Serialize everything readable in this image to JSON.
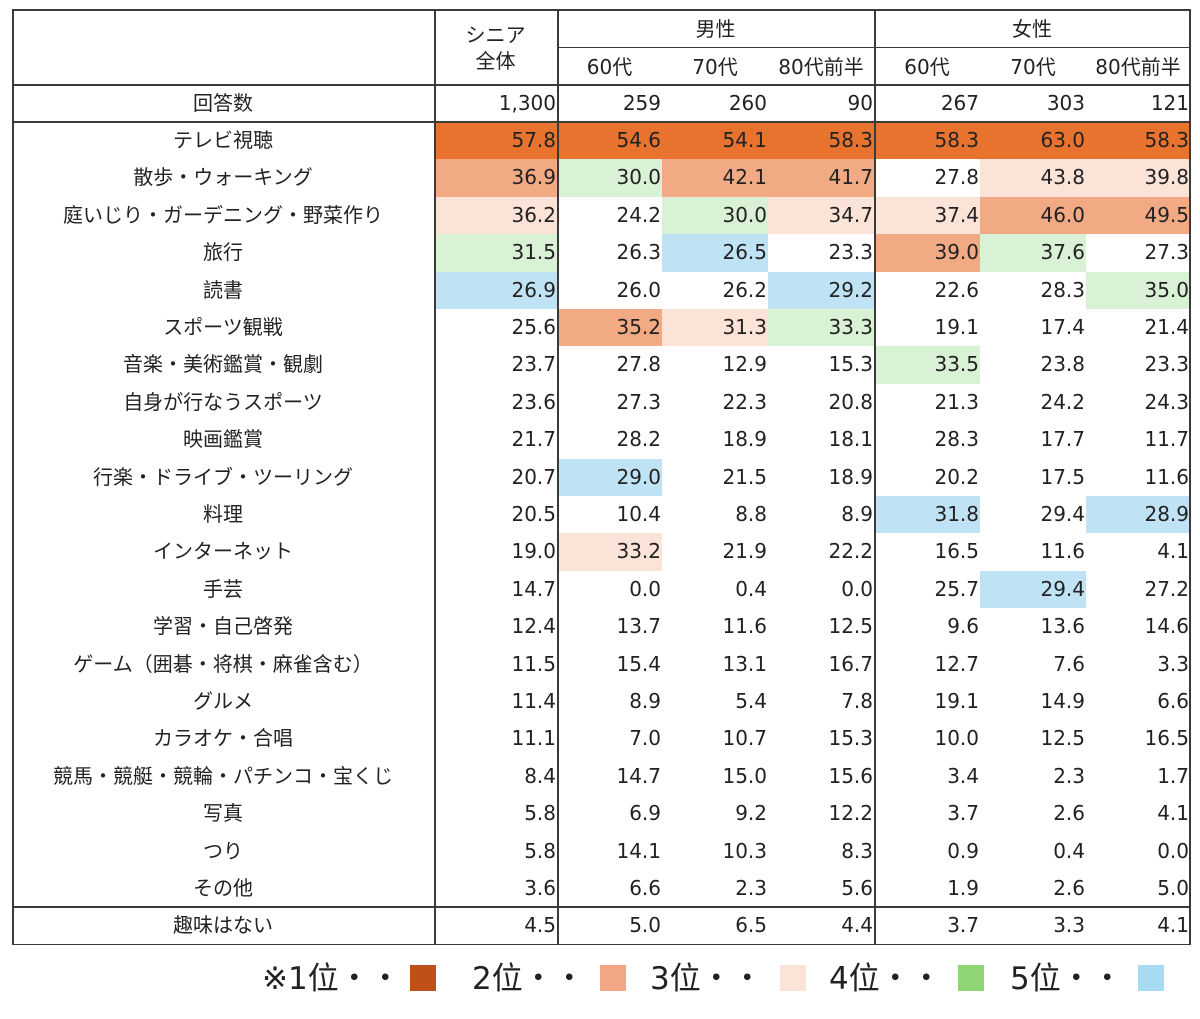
{
  "chart_data": {
    "type": "table",
    "header": {
      "all_label_line1": "シニア",
      "all_label_line2": "全体",
      "male_label": "男性",
      "female_label": "女性",
      "subcolumns": [
        "60代",
        "70代",
        "80代前半",
        "60代",
        "70代",
        "80代前半"
      ]
    },
    "respondents": {
      "label": "回答数",
      "values": [
        "1,300",
        "259",
        "260",
        "90",
        "267",
        "303",
        "121"
      ]
    },
    "rank_colors": {
      "1": "#E8732F",
      "2": "#F2AA85",
      "3": "#FCE3D8",
      "4": "#D9F1D4",
      "5": "#BFE3F5"
    },
    "rows": [
      {
        "label": "テレビ視聴",
        "values": [
          "57.8",
          "54.6",
          "54.1",
          "58.3",
          "58.3",
          "63.0",
          "58.3"
        ],
        "ranks": [
          1,
          1,
          1,
          1,
          1,
          1,
          1
        ]
      },
      {
        "label": "散歩・ウォーキング",
        "values": [
          "36.9",
          "30.0",
          "42.1",
          "41.7",
          "27.8",
          "43.8",
          "39.8"
        ],
        "ranks": [
          2,
          4,
          2,
          2,
          0,
          3,
          3
        ]
      },
      {
        "label": "庭いじり・ガーデニング・野菜作り",
        "values": [
          "36.2",
          "24.2",
          "30.0",
          "34.7",
          "37.4",
          "46.0",
          "49.5"
        ],
        "ranks": [
          3,
          0,
          4,
          3,
          3,
          2,
          2
        ]
      },
      {
        "label": "旅行",
        "values": [
          "31.5",
          "26.3",
          "26.5",
          "23.3",
          "39.0",
          "37.6",
          "27.3"
        ],
        "ranks": [
          4,
          0,
          5,
          0,
          2,
          4,
          0
        ]
      },
      {
        "label": "読書",
        "values": [
          "26.9",
          "26.0",
          "26.2",
          "29.2",
          "22.6",
          "28.3",
          "35.0"
        ],
        "ranks": [
          5,
          0,
          0,
          5,
          0,
          0,
          4
        ]
      },
      {
        "label": "スポーツ観戦",
        "values": [
          "25.6",
          "35.2",
          "31.3",
          "33.3",
          "19.1",
          "17.4",
          "21.4"
        ],
        "ranks": [
          0,
          2,
          3,
          4,
          0,
          0,
          0
        ]
      },
      {
        "label": "音楽・美術鑑賞・観劇",
        "values": [
          "23.7",
          "27.8",
          "12.9",
          "15.3",
          "33.5",
          "23.8",
          "23.3"
        ],
        "ranks": [
          0,
          0,
          0,
          0,
          4,
          0,
          0
        ]
      },
      {
        "label": "自身が行なうスポーツ",
        "values": [
          "23.6",
          "27.3",
          "22.3",
          "20.8",
          "21.3",
          "24.2",
          "24.3"
        ],
        "ranks": [
          0,
          0,
          0,
          0,
          0,
          0,
          0
        ]
      },
      {
        "label": "映画鑑賞",
        "values": [
          "21.7",
          "28.2",
          "18.9",
          "18.1",
          "28.3",
          "17.7",
          "11.7"
        ],
        "ranks": [
          0,
          0,
          0,
          0,
          0,
          0,
          0
        ]
      },
      {
        "label": "行楽・ドライブ・ツーリング",
        "values": [
          "20.7",
          "29.0",
          "21.5",
          "18.9",
          "20.2",
          "17.5",
          "11.6"
        ],
        "ranks": [
          0,
          5,
          0,
          0,
          0,
          0,
          0
        ]
      },
      {
        "label": "料理",
        "values": [
          "20.5",
          "10.4",
          "8.8",
          "8.9",
          "31.8",
          "29.4",
          "28.9"
        ],
        "ranks": [
          0,
          0,
          0,
          0,
          5,
          0,
          5
        ]
      },
      {
        "label": "インターネット",
        "values": [
          "19.0",
          "33.2",
          "21.9",
          "22.2",
          "16.5",
          "11.6",
          "4.1"
        ],
        "ranks": [
          0,
          3,
          0,
          0,
          0,
          0,
          0
        ]
      },
      {
        "label": "手芸",
        "values": [
          "14.7",
          "0.0",
          "0.4",
          "0.0",
          "25.7",
          "29.4",
          "27.2"
        ],
        "ranks": [
          0,
          0,
          0,
          0,
          0,
          5,
          0
        ]
      },
      {
        "label": "学習・自己啓発",
        "values": [
          "12.4",
          "13.7",
          "11.6",
          "12.5",
          "9.6",
          "13.6",
          "14.6"
        ],
        "ranks": [
          0,
          0,
          0,
          0,
          0,
          0,
          0
        ]
      },
      {
        "label": "ゲーム（囲碁・将棋・麻雀含む）",
        "values": [
          "11.5",
          "15.4",
          "13.1",
          "16.7",
          "12.7",
          "7.6",
          "3.3"
        ],
        "ranks": [
          0,
          0,
          0,
          0,
          0,
          0,
          0
        ]
      },
      {
        "label": "グルメ",
        "values": [
          "11.4",
          "8.9",
          "5.4",
          "7.8",
          "19.1",
          "14.9",
          "6.6"
        ],
        "ranks": [
          0,
          0,
          0,
          0,
          0,
          0,
          0
        ]
      },
      {
        "label": "カラオケ・合唱",
        "values": [
          "11.1",
          "7.0",
          "10.7",
          "15.3",
          "10.0",
          "12.5",
          "16.5"
        ],
        "ranks": [
          0,
          0,
          0,
          0,
          0,
          0,
          0
        ]
      },
      {
        "label": "競馬・競艇・競輪・パチンコ・宝くじ",
        "values": [
          "8.4",
          "14.7",
          "15.0",
          "15.6",
          "3.4",
          "2.3",
          "1.7"
        ],
        "ranks": [
          0,
          0,
          0,
          0,
          0,
          0,
          0
        ]
      },
      {
        "label": "写真",
        "values": [
          "5.8",
          "6.9",
          "9.2",
          "12.2",
          "3.7",
          "2.6",
          "4.1"
        ],
        "ranks": [
          0,
          0,
          0,
          0,
          0,
          0,
          0
        ]
      },
      {
        "label": "つり",
        "values": [
          "5.8",
          "14.1",
          "10.3",
          "8.3",
          "0.9",
          "0.4",
          "0.0"
        ],
        "ranks": [
          0,
          0,
          0,
          0,
          0,
          0,
          0
        ]
      },
      {
        "label": "その他",
        "values": [
          "3.6",
          "6.6",
          "2.3",
          "5.6",
          "1.9",
          "2.6",
          "5.0"
        ],
        "ranks": [
          0,
          0,
          0,
          0,
          0,
          0,
          0
        ]
      }
    ],
    "footer_row": {
      "label": "趣味はない",
      "values": [
        "4.5",
        "5.0",
        "6.5",
        "4.4",
        "3.7",
        "3.3",
        "4.1"
      ]
    },
    "legend": [
      {
        "label": "※1位・・",
        "color": "#C0501A"
      },
      {
        "label": "2位・・",
        "color": "#F2A683"
      },
      {
        "label": "3位・・",
        "color": "#FCE3D8"
      },
      {
        "label": "4位・・",
        "color": "#8FD574"
      },
      {
        "label": "5位・・",
        "color": "#A6DBF3"
      }
    ]
  }
}
